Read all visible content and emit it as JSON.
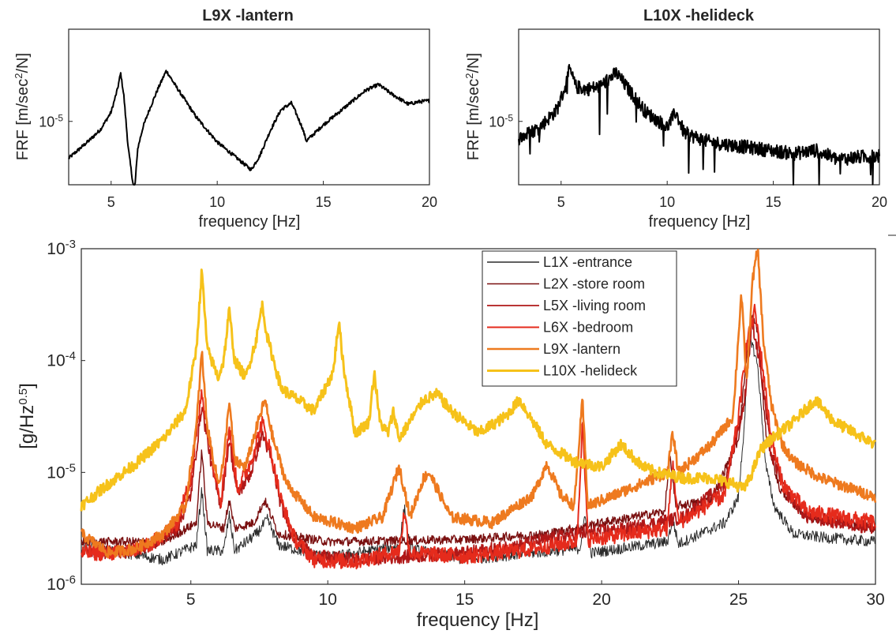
{
  "chart_data": [
    {
      "type": "line",
      "title": "L9X -lantern",
      "xlabel": "frequency [Hz]",
      "ylabel": "FRF [m/sec²/N]",
      "ylabel_parts": {
        "main": "FRF [m/sec",
        "sup": "2",
        "tail": "/N]"
      },
      "xlim": [
        3,
        20
      ],
      "ylim_log10": [
        -5.55,
        -4.2
      ],
      "xticks": [
        5,
        10,
        15,
        20
      ],
      "yticks": [
        {
          "base": "10",
          "exp": "-5",
          "value": -5
        }
      ],
      "grid": true,
      "series": [
        {
          "color": "#000000",
          "noise": 0.015,
          "x": [
            3,
            3.5,
            4,
            4.5,
            5,
            5.3,
            5.45,
            5.6,
            5.8,
            6.0,
            6.1,
            6.25,
            6.5,
            6.8,
            7.2,
            7.6,
            8,
            9,
            10,
            11,
            11.6,
            12,
            12.5,
            13,
            13.5,
            14,
            14.2,
            15,
            16,
            17,
            17.6,
            18.2,
            19,
            19.5,
            20
          ],
          "y": [
            -5.32,
            -5.24,
            -5.16,
            -5.07,
            -4.92,
            -4.72,
            -4.58,
            -4.78,
            -5.22,
            -5.5,
            -5.62,
            -5.24,
            -5.05,
            -4.9,
            -4.72,
            -4.56,
            -4.68,
            -4.96,
            -5.18,
            -5.33,
            -5.42,
            -5.3,
            -5.08,
            -4.9,
            -4.84,
            -5.05,
            -5.17,
            -5.03,
            -4.88,
            -4.73,
            -4.68,
            -4.76,
            -4.85,
            -4.83,
            -4.82
          ]
        }
      ]
    },
    {
      "type": "line",
      "title": "L10X -helideck",
      "xlabel": "frequency [Hz]",
      "ylabel": "FRF [m/sec²/N]",
      "ylabel_parts": {
        "main": "FRF [m/sec",
        "sup": "2",
        "tail": "/N]"
      },
      "xlim": [
        3,
        20
      ],
      "ylim_log10": [
        -5.55,
        -4.2
      ],
      "xticks": [
        5,
        10,
        15,
        20
      ],
      "yticks": [
        {
          "base": "10",
          "exp": "-5",
          "value": -5
        }
      ],
      "grid": true,
      "series": [
        {
          "color": "#000000",
          "noise": 0.06,
          "x": [
            3,
            4,
            4.8,
            5.2,
            5.4,
            5.7,
            6.2,
            6.8,
            7.2,
            7.6,
            8,
            9,
            10,
            10.4,
            10.8,
            12,
            14,
            16,
            17,
            18,
            19,
            20
          ],
          "y": [
            -5.15,
            -5.05,
            -4.9,
            -4.7,
            -4.55,
            -4.7,
            -4.72,
            -4.7,
            -4.64,
            -4.58,
            -4.68,
            -4.92,
            -5.05,
            -4.92,
            -5.1,
            -5.18,
            -5.23,
            -5.28,
            -5.25,
            -5.33,
            -5.31,
            -5.3
          ]
        }
      ]
    },
    {
      "type": "line",
      "title": "",
      "xlabel": "frequency [Hz]",
      "ylabel": "[g/Hz^0.5]",
      "ylabel_parts": {
        "main": "[g/Hz",
        "sup": "0.5",
        "tail": "]"
      },
      "xlim": [
        1,
        30
      ],
      "ylim_log10": [
        -6,
        -3
      ],
      "xticks": [
        5,
        10,
        15,
        20,
        25,
        30
      ],
      "yticks": [
        {
          "base": "10",
          "exp": "-6",
          "value": -6
        },
        {
          "base": "10",
          "exp": "-5",
          "value": -5
        },
        {
          "base": "10",
          "exp": "-4",
          "value": -4
        },
        {
          "base": "10",
          "exp": "-3",
          "value": -3
        }
      ],
      "grid": true,
      "legend_position": "top-right",
      "series": [
        {
          "name": "L1X -entrance",
          "color": "#2b2b2b",
          "width": 1.0,
          "noise": 0.05,
          "x": [
            1,
            4,
            5.2,
            5.4,
            5.6,
            6.2,
            6.4,
            6.6,
            7.4,
            7.8,
            8.2,
            10,
            12.6,
            12.8,
            13,
            15,
            19.2,
            19.4,
            19.6,
            22.4,
            22.6,
            22.8,
            24.5,
            25,
            25.2,
            25.4,
            25.7,
            26,
            26.3,
            27,
            28,
            30
          ],
          "y": [
            -5.65,
            -5.78,
            -5.65,
            -5.15,
            -5.7,
            -5.7,
            -5.38,
            -5.7,
            -5.55,
            -5.42,
            -5.65,
            -5.76,
            -5.66,
            -5.32,
            -5.68,
            -5.78,
            -5.68,
            -5.4,
            -5.72,
            -5.62,
            -5.42,
            -5.64,
            -5.45,
            -5.22,
            -4.6,
            -3.75,
            -4.05,
            -4.95,
            -5.3,
            -5.55,
            -5.58,
            -5.62
          ]
        },
        {
          "name": "L2X -store room",
          "color": "#7a1010",
          "width": 1.4,
          "noise": 0.04,
          "x": [
            1,
            4,
            5.2,
            5.4,
            5.6,
            6.2,
            6.4,
            6.6,
            7.3,
            7.7,
            8.2,
            10,
            15,
            18,
            20,
            22.3,
            22.5,
            22.7,
            24,
            25,
            25.3,
            25.5,
            25.7,
            26,
            26.5,
            27.5,
            30
          ],
          "y": [
            -5.62,
            -5.62,
            -5.45,
            -4.8,
            -5.45,
            -5.5,
            -5.25,
            -5.5,
            -5.45,
            -5.25,
            -5.55,
            -5.62,
            -5.6,
            -5.55,
            -5.45,
            -5.35,
            -4.85,
            -5.3,
            -5.25,
            -4.7,
            -3.95,
            -3.6,
            -3.75,
            -4.65,
            -5.15,
            -5.4,
            -5.5
          ]
        },
        {
          "name": "L5X -living room",
          "color": "#b01818",
          "width": 1.8,
          "noise": 0.06,
          "x": [
            1,
            2.5,
            3.5,
            4.5,
            5.0,
            5.4,
            5.8,
            6.1,
            6.4,
            6.7,
            7.2,
            7.6,
            7.9,
            8.3,
            8.8,
            9.5,
            11,
            13,
            15,
            17,
            19,
            21,
            23,
            24.5,
            25.2,
            25.5,
            25.8,
            26.2,
            26.8,
            27.5,
            30
          ],
          "y": [
            -5.7,
            -5.72,
            -5.65,
            -5.5,
            -5.2,
            -4.4,
            -5.0,
            -5.3,
            -4.7,
            -5.2,
            -5.0,
            -4.65,
            -4.85,
            -5.3,
            -5.6,
            -5.75,
            -5.78,
            -5.75,
            -5.72,
            -5.65,
            -5.55,
            -5.5,
            -5.4,
            -5.1,
            -4.4,
            -3.65,
            -4.05,
            -4.85,
            -5.2,
            -5.4,
            -5.5
          ]
        },
        {
          "name": "L6X -bedroom",
          "color": "#e52b1c",
          "width": 2.0,
          "noise": 0.07,
          "x": [
            1,
            2.5,
            3.5,
            4.5,
            5.0,
            5.4,
            5.8,
            6.1,
            6.4,
            6.7,
            7.2,
            7.6,
            7.9,
            8.3,
            8.8,
            9.5,
            11,
            12.6,
            12.8,
            13,
            15,
            17,
            19.1,
            19.3,
            19.5,
            21,
            22.4,
            22.6,
            22.8,
            24.5,
            25,
            25.3,
            25.6,
            25.9,
            26.2,
            26.6,
            27.5,
            30
          ],
          "y": [
            -5.72,
            -5.72,
            -5.65,
            -5.45,
            -5.05,
            -4.28,
            -4.9,
            -5.25,
            -4.6,
            -5.15,
            -4.9,
            -4.55,
            -4.8,
            -5.25,
            -5.6,
            -5.78,
            -5.8,
            -5.7,
            -5.35,
            -5.72,
            -5.75,
            -5.7,
            -5.62,
            -4.55,
            -5.6,
            -5.55,
            -5.5,
            -4.9,
            -5.45,
            -5.2,
            -4.5,
            -3.85,
            -3.55,
            -4.1,
            -4.7,
            -5.1,
            -5.35,
            -5.45
          ]
        },
        {
          "name": "L9X -lantern",
          "color": "#ee7a1f",
          "width": 2.6,
          "noise": 0.05,
          "x": [
            1,
            2,
            3,
            4,
            4.8,
            5.2,
            5.4,
            5.6,
            6.0,
            6.2,
            6.4,
            6.6,
            7.0,
            7.4,
            7.7,
            8.0,
            8.5,
            9.5,
            11,
            12,
            12.6,
            12.8,
            13.0,
            13.5,
            13.7,
            14.0,
            14.5,
            16,
            17.5,
            18,
            18.5,
            19,
            19.3,
            19.5,
            20.5,
            22.4,
            22.6,
            22.8,
            24,
            24.8,
            25.1,
            25.3,
            25.5,
            25.7,
            25.9,
            26.2,
            26.6,
            27,
            28,
            30
          ],
          "y": [
            -5.55,
            -5.72,
            -5.68,
            -5.55,
            -5.3,
            -4.6,
            -3.92,
            -4.6,
            -5.1,
            -4.9,
            -4.35,
            -4.9,
            -4.95,
            -4.6,
            -4.35,
            -4.7,
            -5.1,
            -5.4,
            -5.5,
            -5.4,
            -4.95,
            -5.15,
            -5.4,
            -5.05,
            -5.0,
            -5.15,
            -5.4,
            -5.45,
            -5.2,
            -4.92,
            -5.2,
            -5.3,
            -4.35,
            -5.3,
            -5.2,
            -5.0,
            -4.65,
            -5.0,
            -4.75,
            -4.5,
            -3.4,
            -4.2,
            -3.3,
            -3.0,
            -3.8,
            -4.4,
            -4.75,
            -4.9,
            -5.05,
            -5.22
          ]
        },
        {
          "name": "L10X -helideck",
          "color": "#f6c21a",
          "width": 3.0,
          "noise": 0.05,
          "x": [
            1,
            2,
            3,
            4,
            4.8,
            5.2,
            5.4,
            5.6,
            6.0,
            6.2,
            6.4,
            6.6,
            7.0,
            7.4,
            7.6,
            7.8,
            8.3,
            9.5,
            10.2,
            10.4,
            10.6,
            11,
            11.5,
            11.7,
            11.9,
            12.2,
            12.4,
            12.6,
            13.5,
            14.0,
            14.5,
            15.5,
            16.5,
            17.0,
            17.5,
            18,
            19,
            20,
            20.7,
            21.5,
            22,
            23,
            24,
            24.8,
            25.2,
            25.5,
            25.8,
            26.2,
            27,
            27.8,
            28.5,
            30
          ],
          "y": [
            -5.3,
            -5.1,
            -4.92,
            -4.7,
            -4.45,
            -3.9,
            -3.2,
            -3.9,
            -4.15,
            -4.0,
            -3.55,
            -4.0,
            -4.15,
            -3.8,
            -3.5,
            -3.8,
            -4.25,
            -4.45,
            -4.1,
            -3.65,
            -4.1,
            -4.65,
            -4.55,
            -4.1,
            -4.55,
            -4.65,
            -4.45,
            -4.7,
            -4.35,
            -4.3,
            -4.45,
            -4.65,
            -4.5,
            -4.35,
            -4.55,
            -4.75,
            -4.9,
            -4.95,
            -4.75,
            -4.95,
            -5.0,
            -5.05,
            -5.05,
            -5.1,
            -5.15,
            -5.0,
            -4.8,
            -4.7,
            -4.55,
            -4.35,
            -4.55,
            -4.75
          ]
        }
      ]
    }
  ]
}
